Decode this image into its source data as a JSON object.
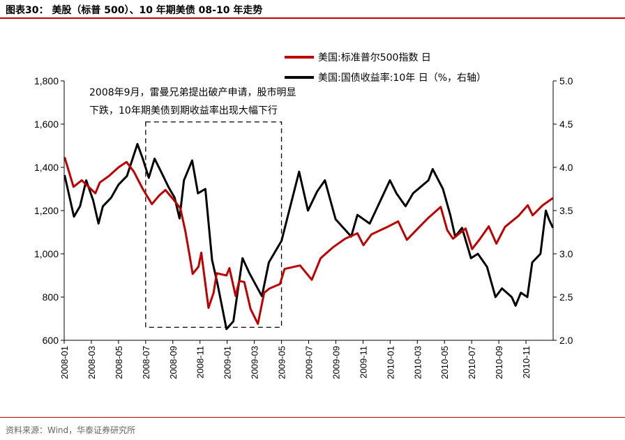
{
  "header": {
    "title": "图表30： 美股（标普 500）、10 年期美债 08-10 年走势"
  },
  "footer": {
    "source": "资料来源：Wind，华泰证券研究所"
  },
  "colors": {
    "accent_rule": "#c00000",
    "sp500": "#c00000",
    "treasury": "#000000"
  },
  "chart_data": {
    "type": "line",
    "title": "",
    "x_categories": [
      "2008-01",
      "2008-03",
      "2008-05",
      "2008-07",
      "2008-09",
      "2008-11",
      "2009-01",
      "2009-03",
      "2009-05",
      "2009-07",
      "2009-09",
      "2009-11",
      "2010-01",
      "2010-03",
      "2010-05",
      "2010-07",
      "2010-09",
      "2010-11"
    ],
    "x_range": [
      "2008-01",
      "2010-12"
    ],
    "y_left": {
      "range": [
        600,
        1800
      ],
      "ticks": [
        "600",
        "800",
        "1,000",
        "1,200",
        "1,400",
        "1,600",
        "1,800"
      ]
    },
    "y_right": {
      "range": [
        2.0,
        5.0
      ],
      "ticks": [
        "2.0",
        "2.5",
        "3.0",
        "3.5",
        "4.0",
        "4.5",
        "5.0"
      ]
    },
    "legend_position": "top-right",
    "annotation": {
      "line1": "2008年9月，雷曼兄弟提出破产申请，股市明显",
      "line2": "下跌，10年期美债到期收益率出现大幅下行",
      "box_x": [
        "2008-07",
        "2009-05"
      ],
      "box_y_left": [
        660,
        1610
      ]
    },
    "series": [
      {
        "name": "美国:标准普尔500指数 日",
        "axis": "left",
        "color": "#c00000",
        "points": [
          [
            "2008-01-02",
            1447
          ],
          [
            "2008-01-22",
            1310
          ],
          [
            "2008-02-10",
            1340
          ],
          [
            "2008-03-10",
            1280
          ],
          [
            "2008-03-20",
            1330
          ],
          [
            "2008-04-10",
            1360
          ],
          [
            "2008-05-01",
            1400
          ],
          [
            "2008-05-19",
            1425
          ],
          [
            "2008-06-05",
            1380
          ],
          [
            "2008-06-25",
            1300
          ],
          [
            "2008-07-15",
            1230
          ],
          [
            "2008-08-01",
            1270
          ],
          [
            "2008-08-15",
            1295
          ],
          [
            "2008-09-05",
            1245
          ],
          [
            "2008-09-18",
            1210
          ],
          [
            "2008-09-29",
            1105
          ],
          [
            "2008-10-08",
            995
          ],
          [
            "2008-10-15",
            907
          ],
          [
            "2008-10-28",
            940
          ],
          [
            "2008-11-04",
            1005
          ],
          [
            "2008-11-20",
            750
          ],
          [
            "2008-12-01",
            820
          ],
          [
            "2008-12-08",
            910
          ],
          [
            "2008-12-30",
            900
          ],
          [
            "2009-01-06",
            934
          ],
          [
            "2009-01-20",
            805
          ],
          [
            "2009-01-28",
            874
          ],
          [
            "2009-02-09",
            870
          ],
          [
            "2009-02-23",
            745
          ],
          [
            "2009-03-09",
            676
          ],
          [
            "2009-03-23",
            820
          ],
          [
            "2009-04-05",
            840
          ],
          [
            "2009-04-28",
            860
          ],
          [
            "2009-05-08",
            930
          ],
          [
            "2009-06-12",
            946
          ],
          [
            "2009-07-08",
            880
          ],
          [
            "2009-07-28",
            980
          ],
          [
            "2009-08-25",
            1030
          ],
          [
            "2009-09-22",
            1070
          ],
          [
            "2009-10-19",
            1095
          ],
          [
            "2009-11-02",
            1040
          ],
          [
            "2009-11-20",
            1090
          ],
          [
            "2009-12-28",
            1127
          ],
          [
            "2010-01-19",
            1150
          ],
          [
            "2010-02-08",
            1065
          ],
          [
            "2010-03-01",
            1115
          ],
          [
            "2010-03-25",
            1165
          ],
          [
            "2010-04-23",
            1217
          ],
          [
            "2010-05-07",
            1110
          ],
          [
            "2010-05-20",
            1070
          ],
          [
            "2010-06-18",
            1117
          ],
          [
            "2010-07-02",
            1022
          ],
          [
            "2010-07-20",
            1070
          ],
          [
            "2010-08-09",
            1127
          ],
          [
            "2010-08-26",
            1047
          ],
          [
            "2010-09-15",
            1125
          ],
          [
            "2010-10-15",
            1176
          ],
          [
            "2010-11-05",
            1225
          ],
          [
            "2010-11-16",
            1178
          ],
          [
            "2010-12-07",
            1223
          ],
          [
            "2010-12-31",
            1258
          ]
        ]
      },
      {
        "name": "美国:国债收益率:10年 日（%，右轴）",
        "axis": "right",
        "color": "#000000",
        "points": [
          [
            "2008-01-02",
            3.91
          ],
          [
            "2008-01-23",
            3.43
          ],
          [
            "2008-02-06",
            3.55
          ],
          [
            "2008-02-20",
            3.85
          ],
          [
            "2008-03-05",
            3.62
          ],
          [
            "2008-03-17",
            3.35
          ],
          [
            "2008-03-27",
            3.55
          ],
          [
            "2008-04-15",
            3.65
          ],
          [
            "2008-05-01",
            3.8
          ],
          [
            "2008-05-20",
            3.9
          ],
          [
            "2008-06-13",
            4.27
          ],
          [
            "2008-06-25",
            4.1
          ],
          [
            "2008-07-08",
            3.88
          ],
          [
            "2008-07-21",
            4.1
          ],
          [
            "2008-08-05",
            3.95
          ],
          [
            "2008-08-22",
            3.77
          ],
          [
            "2008-09-05",
            3.65
          ],
          [
            "2008-09-16",
            3.41
          ],
          [
            "2008-09-26",
            3.85
          ],
          [
            "2008-10-14",
            4.08
          ],
          [
            "2008-10-27",
            3.7
          ],
          [
            "2008-11-13",
            3.75
          ],
          [
            "2008-11-28",
            2.93
          ],
          [
            "2008-12-10",
            2.65
          ],
          [
            "2008-12-30",
            2.13
          ],
          [
            "2009-01-15",
            2.22
          ],
          [
            "2009-02-05",
            2.95
          ],
          [
            "2009-02-20",
            2.78
          ],
          [
            "2009-03-18",
            2.51
          ],
          [
            "2009-04-03",
            2.9
          ],
          [
            "2009-05-01",
            3.15
          ],
          [
            "2009-06-10",
            3.95
          ],
          [
            "2009-06-30",
            3.5
          ],
          [
            "2009-07-20",
            3.72
          ],
          [
            "2009-08-07",
            3.85
          ],
          [
            "2009-08-31",
            3.4
          ],
          [
            "2009-10-05",
            3.2
          ],
          [
            "2009-10-19",
            3.45
          ],
          [
            "2009-11-16",
            3.35
          ],
          [
            "2009-12-31",
            3.85
          ],
          [
            "2010-01-15",
            3.7
          ],
          [
            "2010-02-05",
            3.55
          ],
          [
            "2010-02-22",
            3.7
          ],
          [
            "2010-03-26",
            3.85
          ],
          [
            "2010-04-05",
            3.98
          ],
          [
            "2010-04-28",
            3.75
          ],
          [
            "2010-05-14",
            3.45
          ],
          [
            "2010-05-25",
            3.2
          ],
          [
            "2010-06-10",
            3.3
          ],
          [
            "2010-06-30",
            2.95
          ],
          [
            "2010-07-15",
            3.0
          ],
          [
            "2010-08-05",
            2.85
          ],
          [
            "2010-08-24",
            2.5
          ],
          [
            "2010-09-08",
            2.6
          ],
          [
            "2010-09-30",
            2.5
          ],
          [
            "2010-10-08",
            2.4
          ],
          [
            "2010-10-20",
            2.55
          ],
          [
            "2010-11-04",
            2.5
          ],
          [
            "2010-11-15",
            2.9
          ],
          [
            "2010-12-03",
            3.0
          ],
          [
            "2010-12-15",
            3.5
          ],
          [
            "2010-12-22",
            3.4
          ],
          [
            "2010-12-31",
            3.3
          ]
        ]
      }
    ]
  }
}
